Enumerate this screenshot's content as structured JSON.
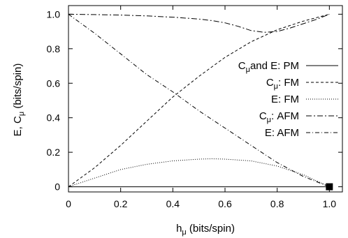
{
  "chart_data": {
    "type": "line",
    "xlabel_main": "h",
    "xlabel_sub": "μ",
    "xlabel_rest": " (bits/spin)",
    "ylabel_main": "E, C",
    "ylabel_sub": "μ",
    "ylabel_rest": " (bits/spin)",
    "xlim": [
      0,
      1.05
    ],
    "ylim": [
      -0.03,
      1.05
    ],
    "xticks": [
      0,
      0.2,
      0.4,
      0.6,
      0.8,
      1
    ],
    "xtick_labels": [
      "0",
      "0.2",
      "0.4",
      "0.6",
      "0.8",
      "1.0"
    ],
    "yticks": [
      0,
      0.2,
      0.4,
      0.6,
      0.8,
      1
    ],
    "ytick_labels": [
      "0",
      "0.2",
      "0.4",
      "0.6",
      "0.8",
      "1.0"
    ],
    "grid": false,
    "legend_position": "right",
    "series": [
      {
        "key": "pm",
        "legend_main": "C",
        "legend_sub": "μ",
        "legend_rest": "and E: PM",
        "dash": "none",
        "x": [
          0,
          1
        ],
        "y": [
          0,
          0
        ]
      },
      {
        "key": "cfm",
        "legend_main": "C",
        "legend_sub": "μ",
        "legend_rest": ":  FM",
        "dash": "4,3",
        "x": [
          0,
          0.1,
          0.2,
          0.3,
          0.4,
          0.5,
          0.6,
          0.7,
          0.8,
          0.9,
          1.0
        ],
        "y": [
          0,
          0.11,
          0.24,
          0.38,
          0.52,
          0.64,
          0.75,
          0.84,
          0.91,
          0.96,
          1.0
        ]
      },
      {
        "key": "efm",
        "legend_main": "E: FM",
        "legend_sub": "",
        "legend_rest": "",
        "dash": "1,2",
        "x": [
          0,
          0.1,
          0.2,
          0.3,
          0.4,
          0.5,
          0.55,
          0.6,
          0.7,
          0.8,
          0.9,
          1.0
        ],
        "y": [
          0,
          0.05,
          0.1,
          0.13,
          0.15,
          0.16,
          0.162,
          0.16,
          0.15,
          0.12,
          0.07,
          0
        ]
      },
      {
        "key": "cafm",
        "legend_main": "C",
        "legend_sub": "μ",
        "legend_rest": ": AFM",
        "dash": "8,3,2,3",
        "x": [
          0,
          0.1,
          0.2,
          0.3,
          0.4,
          0.5,
          0.55,
          0.6,
          0.65,
          0.7,
          0.75,
          0.8,
          0.85,
          0.9,
          0.95,
          1.0
        ],
        "y": [
          1.0,
          0.998,
          0.995,
          0.99,
          0.983,
          0.972,
          0.963,
          0.95,
          0.93,
          0.905,
          0.895,
          0.9,
          0.92,
          0.945,
          0.97,
          1.0
        ]
      },
      {
        "key": "eafm",
        "legend_main": "E: AFM",
        "legend_sub": "",
        "legend_rest": "",
        "dash": "6,3,1,3",
        "x": [
          0,
          0.1,
          0.2,
          0.3,
          0.4,
          0.5,
          0.6,
          0.7,
          0.8,
          0.9,
          1.0
        ],
        "y": [
          1.0,
          0.89,
          0.77,
          0.65,
          0.55,
          0.44,
          0.34,
          0.24,
          0.14,
          0.06,
          0
        ]
      }
    ],
    "marker": {
      "x": 1.0,
      "y": 0
    }
  }
}
